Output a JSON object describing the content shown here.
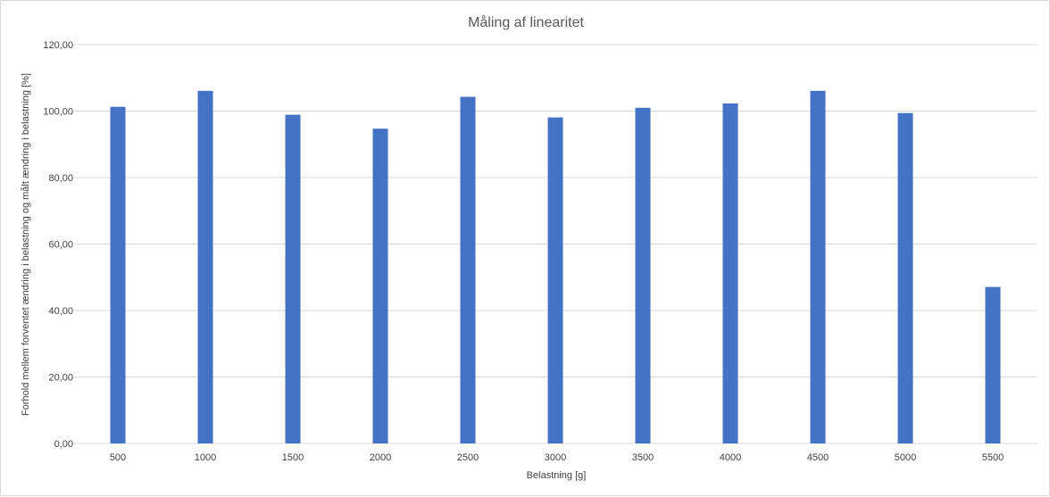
{
  "chart_data": {
    "type": "bar",
    "title": "Måling af linearitet",
    "xlabel": "Belastning [g]",
    "ylabel": "Forhold mellem forventet ændring i belastning og målt ændring i belastning [%]",
    "categories": [
      "500",
      "1000",
      "1500",
      "2000",
      "2500",
      "3000",
      "3500",
      "4000",
      "4500",
      "5000",
      "5500"
    ],
    "series": [
      {
        "values": [
          101.3,
          106.1,
          98.9,
          94.7,
          104.3,
          98.1,
          101.0,
          102.3,
          106.1,
          99.4,
          47.1
        ],
        "color": "#4472c4"
      }
    ],
    "ylim": [
      0,
      120
    ],
    "yticks": [
      0,
      20,
      40,
      60,
      80,
      100,
      120
    ],
    "ytick_labels": [
      "0,00",
      "20,00",
      "40,00",
      "60,00",
      "80,00",
      "100,00",
      "120,00"
    ],
    "grid": true,
    "legend": "none"
  }
}
